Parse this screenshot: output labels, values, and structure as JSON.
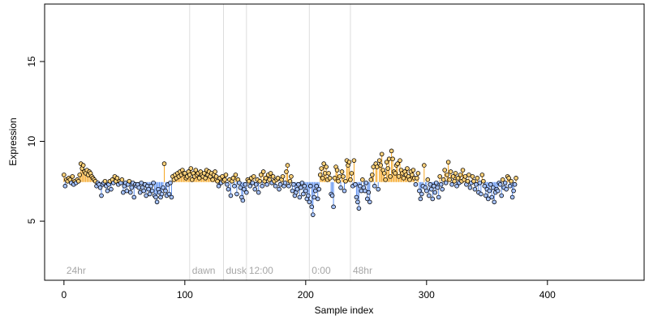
{
  "chart_data": {
    "type": "scatter",
    "title": "",
    "xlabel": "Sample index",
    "ylabel": "Expression",
    "xlim": [
      -16,
      480
    ],
    "ylim": [
      1.3,
      18.6
    ],
    "xticks": [
      0,
      100,
      200,
      300,
      400
    ],
    "yticks": [
      5,
      10,
      15
    ],
    "baseline": 7.45,
    "grid": false,
    "legend": "none",
    "colors": {
      "above": "#f5a623",
      "below": "#5b8ff0",
      "point_fill": "#ffd27a",
      "point_fill_below": "#a6c3ff",
      "point_stroke": "#000000",
      "annotation": "#a6a6a6",
      "vline": "#dddddd"
    },
    "annotations": [
      {
        "label": "24hr",
        "x": 0
      },
      {
        "label": "dawn",
        "x": 104
      },
      {
        "label": "dusk",
        "x": 132
      },
      {
        "label": "12:00",
        "x": 151
      },
      {
        "label": "0:00",
        "x": 203
      },
      {
        "label": "48hr",
        "x": 237
      }
    ],
    "values": [
      7.9,
      7.2,
      7.6,
      7.5,
      7.7,
      7.6,
      7.4,
      7.8,
      7.3,
      7.5,
      7.4,
      7.6,
      7.5,
      7.9,
      8.6,
      8.3,
      8.5,
      8.1,
      8.0,
      8.2,
      7.9,
      8.1,
      8.0,
      7.8,
      7.7,
      7.6,
      7.5,
      7.2,
      7.4,
      7.3,
      7.1,
      6.6,
      7.3,
      7.4,
      7.5,
      7.2,
      6.9,
      7.3,
      7.5,
      7.0,
      7.6,
      7.4,
      7.8,
      7.5,
      7.7,
      7.3,
      7.5,
      7.4,
      7.6,
      6.8,
      7.2,
      7.4,
      6.9,
      7.3,
      7.5,
      6.8,
      7.1,
      7.4,
      6.5,
      7.3,
      7.2,
      7.3,
      7.1,
      6.8,
      7.4,
      7.1,
      6.9,
      7.3,
      6.6,
      7.2,
      7.0,
      6.7,
      7.2,
      6.9,
      7.4,
      6.6,
      6.5,
      6.2,
      7.0,
      6.8,
      6.5,
      6.7,
      7.1,
      8.6,
      6.9,
      6.6,
      7.3,
      6.7,
      7.4,
      6.5,
      7.8,
      7.6,
      7.9,
      7.7,
      8.0,
      7.8,
      8.1,
      7.9,
      8.2,
      8.0,
      8.0,
      7.7,
      7.8,
      8.1,
      7.9,
      8.3,
      7.6,
      8.0,
      7.8,
      8.2,
      7.9,
      8.0,
      7.7,
      8.1,
      7.9,
      7.8,
      8.0,
      7.7,
      8.2,
      7.9,
      8.1,
      7.8,
      8.0,
      7.6,
      7.9,
      8.1,
      7.8,
      7.5,
      7.2,
      7.7,
      7.4,
      7.8,
      7.5,
      7.6,
      7.9,
      7.3,
      7.0,
      7.6,
      6.6,
      7.5,
      7.7,
      7.2,
      7.9,
      6.7,
      7.6,
      7.4,
      7.1,
      6.5,
      6.3,
      7.0,
      7.3,
      6.8,
      7.6,
      7.5,
      7.2,
      7.7,
      7.4,
      7.8,
      7.0,
      7.3,
      7.6,
      6.8,
      7.5,
      7.9,
      7.2,
      8.1,
      7.5,
      7.7,
      7.3,
      7.9,
      7.6,
      8.0,
      7.4,
      7.8,
      7.5,
      7.2,
      7.6,
      7.7,
      7.0,
      7.3,
      7.6,
      7.8,
      7.2,
      7.4,
      8.1,
      8.5,
      7.2,
      7.5,
      7.8,
      6.9,
      7.3,
      6.6,
      6.8,
      7.0,
      7.3,
      6.5,
      7.1,
      7.4,
      6.7,
      7.2,
      6.9,
      6.4,
      6.6,
      6.2,
      7.2,
      5.9,
      5.4,
      6.5,
      6.9,
      7.2,
      6.4,
      7.0,
      7.9,
      8.3,
      7.7,
      8.6,
      8.0,
      8.4,
      7.6,
      8.0,
      7.7,
      6.7,
      6.6,
      5.9,
      7.7,
      8.4,
      8.2,
      7.5,
      7.8,
      7.1,
      8.1,
      7.8,
      6.9,
      7.5,
      8.8,
      8.5,
      8.7,
      7.6,
      8.0,
      7.2,
      8.8,
      7.3,
      6.5,
      6.2,
      5.8,
      7.2,
      6.9,
      7.6,
      7.1,
      6.9,
      7.4,
      6.4,
      6.8,
      6.2,
      7.6,
      7.9,
      8.4,
      7.2,
      8.6,
      8.4,
      7.0,
      8.8,
      8.5,
      9.2,
      8.2,
      8.0,
      7.6,
      8.7,
      8.3,
      8.9,
      7.8,
      9.4,
      8.9,
      8.1,
      8.0,
      8.5,
      8.6,
      7.8,
      8.8,
      8.2,
      8.0,
      7.7,
      8.1,
      7.9,
      8.3,
      7.8,
      7.6,
      8.1,
      7.9,
      8.2,
      7.7,
      7.3,
      7.7,
      8.0,
      6.9,
      6.4,
      6.7,
      7.2,
      8.5,
      7.1,
      6.9,
      7.6,
      6.6,
      7.3,
      7.0,
      6.4,
      7.2,
      6.8,
      7.4,
      7.1,
      6.5,
      7.8,
      7.3,
      7.0,
      7.6,
      8.2,
      7.4,
      7.9,
      8.7,
      7.6,
      8.1,
      7.3,
      7.8,
      7.5,
      8.0,
      7.2,
      7.7,
      7.4,
      7.9,
      7.5,
      8.2,
      7.6,
      7.8,
      7.3,
      7.5,
      7.9,
      7.1,
      7.4,
      7.8,
      7.5,
      7.0,
      7.3,
      7.7,
      6.8,
      7.4,
      6.7,
      7.9,
      7.5,
      7.2,
      6.6,
      7.0,
      6.4,
      6.9,
      7.3,
      6.5,
      7.1,
      6.2,
      6.8,
      7.0,
      6.9,
      7.4,
      7.3,
      6.6,
      7.6,
      7.1,
      7.4,
      7.0,
      7.8,
      7.7,
      7.2,
      7.5,
      6.5,
      6.9,
      7.3,
      7.7
    ]
  }
}
